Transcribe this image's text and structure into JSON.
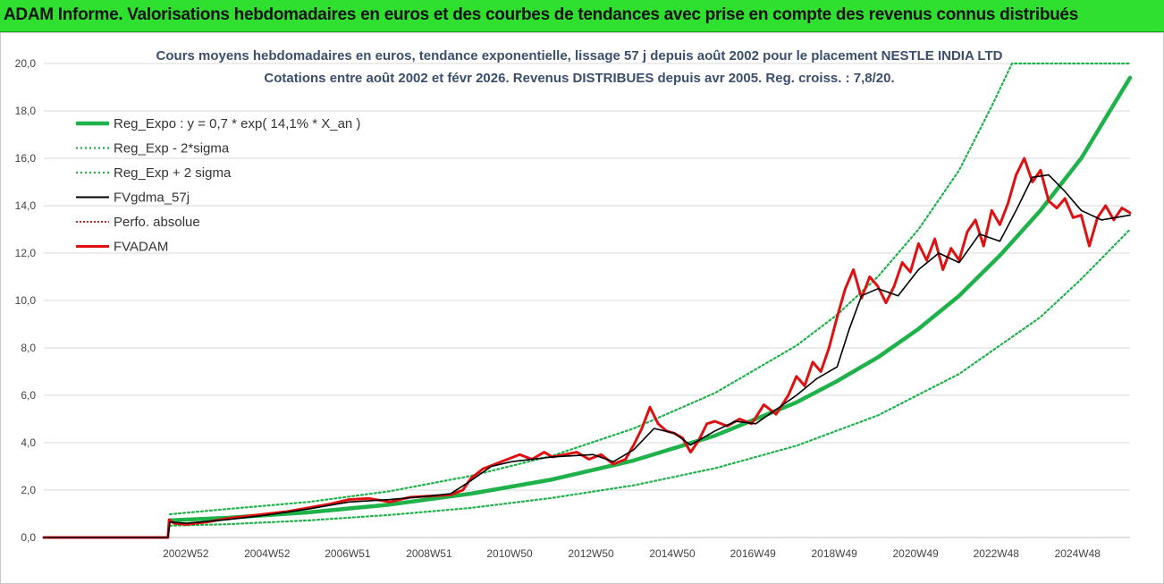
{
  "header": {
    "title": "ADAM Informe. Valorisations hebdomadaires en euros et des courbes de tendances avec prise en compte des revenus connus distribués"
  },
  "colors": {
    "header_bg": "#2fe02f",
    "reg_expo": "#1fb24a",
    "bands": "#1fb24a",
    "fvgdma": "#000000",
    "perfo": "#d42020",
    "fvadam": "#e01010",
    "grid": "#d9d9d9"
  },
  "chart_data": {
    "type": "line",
    "title": "Cours moyens hebdomadaires en euros, tendance exponentielle, lissage 57 j depuis août 2002 pour le placement NESTLE INDIA LTD",
    "subtitle": "Cotations entre août 2002 et févr 2026. Revenus DISTRIBUES depuis avr 2005. Reg. croiss. : 7,8/20.",
    "xlabel": "",
    "ylabel": "",
    "ylim": [
      0,
      20
    ],
    "yticks": [
      "0,0",
      "2,0",
      "4,0",
      "6,0",
      "8,0",
      "10,0",
      "12,0",
      "14,0",
      "16,0",
      "18,0",
      "20,0"
    ],
    "xlim": [
      1999.5,
      2026.2
    ],
    "xticks": [
      {
        "label": "2002W52",
        "x": 2002.99
      },
      {
        "label": "2004W52",
        "x": 2004.99
      },
      {
        "label": "2006W51",
        "x": 2006.97
      },
      {
        "label": "2008W51",
        "x": 2008.97
      },
      {
        "label": "2010W50",
        "x": 2010.95
      },
      {
        "label": "2012W50",
        "x": 2012.95
      },
      {
        "label": "2014W50",
        "x": 2014.95
      },
      {
        "label": "2016W49",
        "x": 2016.93
      },
      {
        "label": "2018W49",
        "x": 2018.93
      },
      {
        "label": "2020W49",
        "x": 2020.93
      },
      {
        "label": "2022W48",
        "x": 2022.91
      },
      {
        "label": "2024W48",
        "x": 2024.91
      }
    ],
    "grid": "horizontal",
    "legend_position": "top-left",
    "series": [
      {
        "name": "Reg_Expo : y = 0,7 * exp( 14,1% *  X_an )",
        "style": "solid-thick",
        "x": [
          2002.6,
          2004,
          2006,
          2008,
          2010,
          2012,
          2014,
          2016,
          2018,
          2019,
          2020,
          2021,
          2022,
          2023,
          2024,
          2025,
          2026.2
        ],
        "y": [
          0.72,
          0.83,
          1.06,
          1.39,
          1.85,
          2.45,
          3.25,
          4.3,
          5.7,
          6.6,
          7.6,
          8.8,
          10.2,
          11.9,
          13.8,
          16.0,
          19.4
        ]
      },
      {
        "name": "Reg_Exp - 2*sigma",
        "style": "dotted",
        "x": [
          2002.6,
          2004,
          2006,
          2008,
          2010,
          2012,
          2014,
          2016,
          2018,
          2020,
          2022,
          2024,
          2025,
          2026.2
        ],
        "y": [
          0.5,
          0.56,
          0.72,
          0.95,
          1.25,
          1.67,
          2.2,
          2.92,
          3.87,
          5.15,
          6.9,
          9.3,
          10.9,
          13.0
        ]
      },
      {
        "name": "Reg_Exp + 2 sigma",
        "style": "dotted",
        "x": [
          2002.6,
          2004,
          2006,
          2008,
          2010,
          2012,
          2014,
          2016,
          2018,
          2019,
          2020,
          2021,
          2022,
          2022.8,
          2023.3,
          2026.2
        ],
        "y": [
          0.98,
          1.2,
          1.5,
          1.95,
          2.6,
          3.45,
          4.6,
          6.1,
          8.1,
          9.4,
          11.0,
          13.0,
          15.5,
          18.2,
          20.0,
          20.0
        ]
      },
      {
        "name": "FVgdma_57j",
        "style": "solid-thin",
        "x": [
          1999.5,
          2002.55,
          2002.6,
          2003,
          2004,
          2005,
          2006,
          2007,
          2008,
          2009,
          2009.5,
          2010,
          2010.5,
          2011,
          2012,
          2013,
          2013.5,
          2014,
          2014.5,
          2015,
          2015.4,
          2016,
          2016.5,
          2017,
          2017.5,
          2018,
          2018.5,
          2019,
          2019.3,
          2019.6,
          2020,
          2020.5,
          2021,
          2021.5,
          2022,
          2022.5,
          2023,
          2023.4,
          2023.8,
          2024.2,
          2024.6,
          2025,
          2025.5,
          2026.2
        ],
        "y": [
          0,
          0,
          0.65,
          0.6,
          0.75,
          0.95,
          1.2,
          1.5,
          1.6,
          1.75,
          1.85,
          2.4,
          3.0,
          3.2,
          3.4,
          3.5,
          3.2,
          3.7,
          4.6,
          4.4,
          3.9,
          4.5,
          4.9,
          4.8,
          5.4,
          6.0,
          6.7,
          7.2,
          8.8,
          10.2,
          10.5,
          10.2,
          11.3,
          12.0,
          11.6,
          12.8,
          12.5,
          13.8,
          15.2,
          15.3,
          14.6,
          13.8,
          13.4,
          13.6
        ]
      },
      {
        "name": "Perfo. absolue",
        "style": "dotted-red",
        "x": [],
        "y": []
      },
      {
        "name": "FVADAM",
        "style": "solid-red",
        "x": [
          1999.5,
          2002.55,
          2002.58,
          2002.7,
          2003,
          2003.5,
          2004,
          2004.5,
          2005,
          2005.5,
          2006,
          2006.5,
          2007,
          2007.5,
          2008,
          2008.5,
          2009,
          2009.5,
          2009.8,
          2010,
          2010.3,
          2010.6,
          2010.9,
          2011.2,
          2011.5,
          2011.8,
          2012,
          2012.3,
          2012.6,
          2012.9,
          2013.2,
          2013.5,
          2013.8,
          2014,
          2014.2,
          2014.4,
          2014.6,
          2014.8,
          2015,
          2015.2,
          2015.4,
          2015.6,
          2015.8,
          2016,
          2016.3,
          2016.6,
          2016.9,
          2017.2,
          2017.5,
          2017.8,
          2018,
          2018.2,
          2018.4,
          2018.6,
          2018.8,
          2019,
          2019.2,
          2019.4,
          2019.6,
          2019.8,
          2020,
          2020.2,
          2020.4,
          2020.6,
          2020.8,
          2021,
          2021.2,
          2021.4,
          2021.6,
          2021.8,
          2022,
          2022.2,
          2022.4,
          2022.6,
          2022.8,
          2023,
          2023.2,
          2023.4,
          2023.6,
          2023.8,
          2024,
          2024.2,
          2024.4,
          2024.6,
          2024.8,
          2025,
          2025.2,
          2025.4,
          2025.6,
          2025.8,
          2026,
          2026.2
        ],
        "y": [
          0,
          0,
          0.75,
          0.6,
          0.55,
          0.65,
          0.8,
          0.9,
          1.0,
          1.1,
          1.25,
          1.4,
          1.6,
          1.65,
          1.5,
          1.7,
          1.75,
          1.8,
          2.0,
          2.5,
          2.9,
          3.1,
          3.3,
          3.5,
          3.3,
          3.6,
          3.4,
          3.5,
          3.6,
          3.3,
          3.5,
          3.1,
          3.3,
          3.9,
          4.6,
          5.5,
          4.8,
          4.5,
          4.4,
          4.2,
          3.6,
          4.1,
          4.8,
          4.9,
          4.7,
          5.0,
          4.8,
          5.6,
          5.2,
          6.0,
          6.8,
          6.4,
          7.4,
          7.0,
          8.0,
          9.3,
          10.5,
          11.3,
          10.1,
          11.0,
          10.6,
          9.9,
          10.6,
          11.6,
          11.2,
          12.4,
          11.7,
          12.6,
          11.3,
          12.2,
          11.7,
          12.9,
          13.4,
          12.3,
          13.8,
          13.2,
          14.1,
          15.3,
          16.0,
          15.0,
          15.5,
          14.2,
          13.9,
          14.3,
          13.5,
          13.6,
          12.3,
          13.5,
          14.0,
          13.4,
          13.9,
          13.7
        ]
      }
    ]
  }
}
